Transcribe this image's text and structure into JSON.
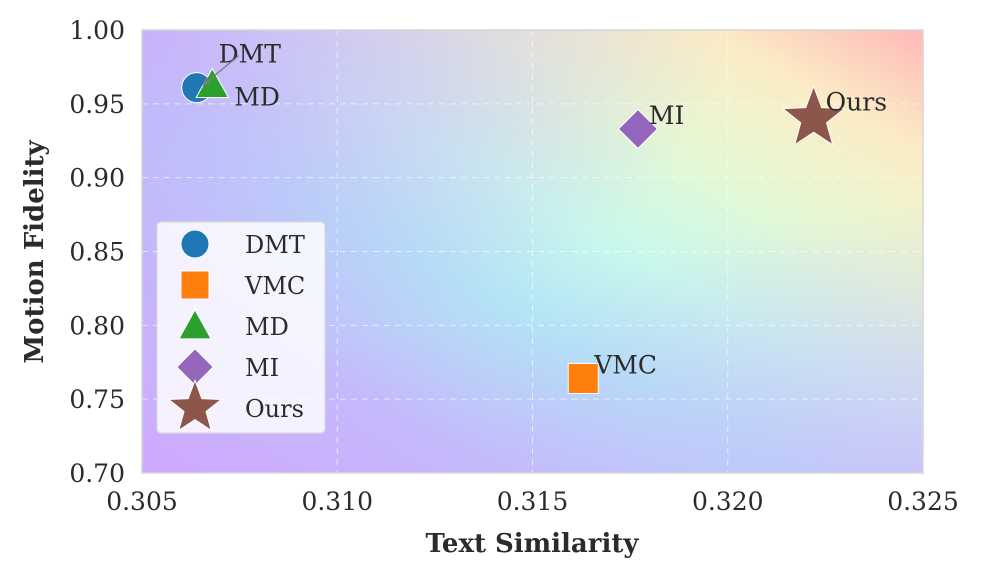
{
  "chart_data": {
    "type": "scatter",
    "title": "",
    "xlabel": "Text Similarity",
    "ylabel": "Motion Fidelity",
    "xlim": [
      0.305,
      0.325
    ],
    "ylim": [
      0.7,
      1.0
    ],
    "xticks": [
      "0.305",
      "0.310",
      "0.315",
      "0.320",
      "0.325"
    ],
    "yticks": [
      "0.70",
      "0.75",
      "0.80",
      "0.85",
      "0.90",
      "0.95",
      "1.00"
    ],
    "grid": true,
    "legend_position": "center-left",
    "series": [
      {
        "name": "DMT",
        "x": 0.3064,
        "y": 0.961,
        "marker": "circle",
        "color": "#1f77b4",
        "label": "DMT"
      },
      {
        "name": "VMC",
        "x": 0.3163,
        "y": 0.764,
        "marker": "square",
        "color": "#ff7f0e",
        "label": "VMC"
      },
      {
        "name": "MD",
        "x": 0.3068,
        "y": 0.963,
        "marker": "triangle",
        "color": "#2ca02c",
        "label": "MD"
      },
      {
        "name": "MI",
        "x": 0.3177,
        "y": 0.933,
        "marker": "diamond",
        "color": "#9467bd",
        "label": "MI"
      },
      {
        "name": "Ours",
        "x": 0.3222,
        "y": 0.94,
        "marker": "star",
        "color": "#8c564b",
        "label": "Ours"
      }
    ]
  }
}
